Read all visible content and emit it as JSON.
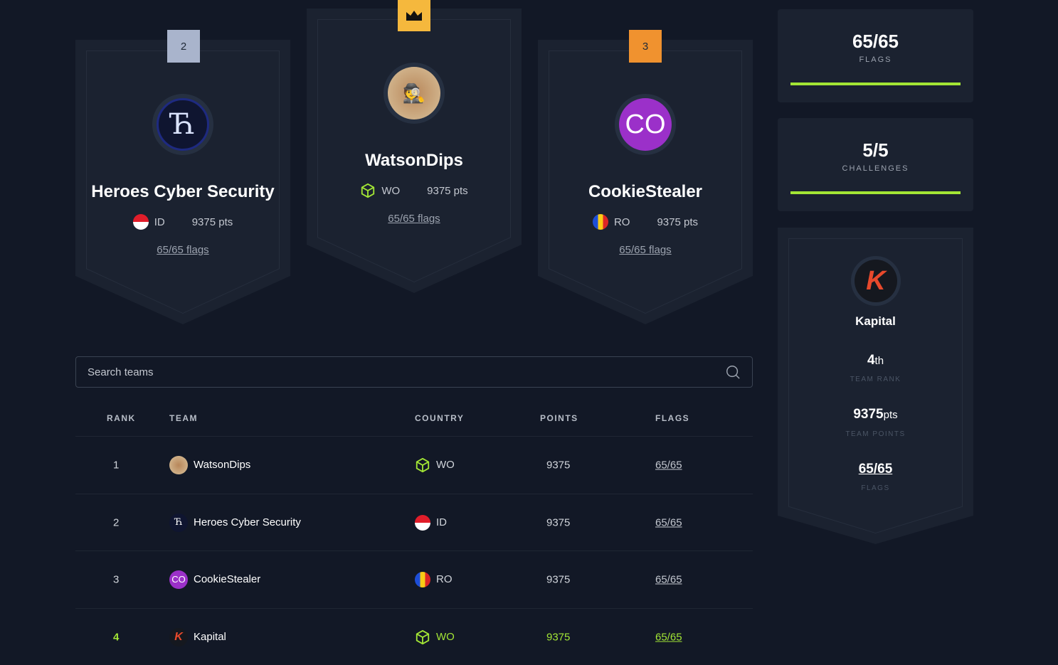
{
  "podium": [
    {
      "place": "2",
      "name": "Heroes Cyber Security",
      "country": "ID",
      "points": "9375 pts",
      "flags": "65/65 flags",
      "avatar": "heroes-logo"
    },
    {
      "place": "1",
      "name": "WatsonDips",
      "country": "WO",
      "points": "9375 pts",
      "flags": "65/65 flags",
      "avatar": "watsondips-avatar"
    },
    {
      "place": "3",
      "name": "CookieStealer",
      "country": "RO",
      "points": "9375 pts",
      "flags": "65/65 flags",
      "avatar_initials": "CO"
    }
  ],
  "stats": {
    "flags": {
      "value": "65/65",
      "label": "FLAGS",
      "progress": 1.0
    },
    "challenges": {
      "value": "5/5",
      "label": "CHALLENGES",
      "progress": 1.0
    }
  },
  "my_team": {
    "name": "Kapital",
    "rank": "4",
    "rank_suffix": "th",
    "rank_label": "TEAM RANK",
    "points": "9375",
    "points_suffix": "pts",
    "points_label": "TEAM POINTS",
    "flags": "65/65",
    "flags_label": "FLAGS"
  },
  "search": {
    "placeholder": "Search teams"
  },
  "table": {
    "headers": [
      "RANK",
      "TEAM",
      "COUNTRY",
      "POINTS",
      "FLAGS"
    ],
    "rows": [
      {
        "rank": "1",
        "team": "WatsonDips",
        "country": "WO",
        "points": "9375",
        "flags": "65/65"
      },
      {
        "rank": "2",
        "team": "Heroes Cyber Security",
        "country": "ID",
        "points": "9375",
        "flags": "65/65"
      },
      {
        "rank": "3",
        "team": "CookieStealer",
        "initials": "CO",
        "country": "RO",
        "points": "9375",
        "flags": "65/65"
      },
      {
        "rank": "4",
        "team": "Kapital",
        "country": "WO",
        "points": "9375",
        "flags": "65/65"
      }
    ]
  },
  "colors": {
    "accent": "#a3e635",
    "gold": "#f5b83d",
    "silver": "#a9b4cc",
    "bronze": "#f0922f",
    "cookie": "#9b30c9",
    "kapital": "#e8492c"
  }
}
